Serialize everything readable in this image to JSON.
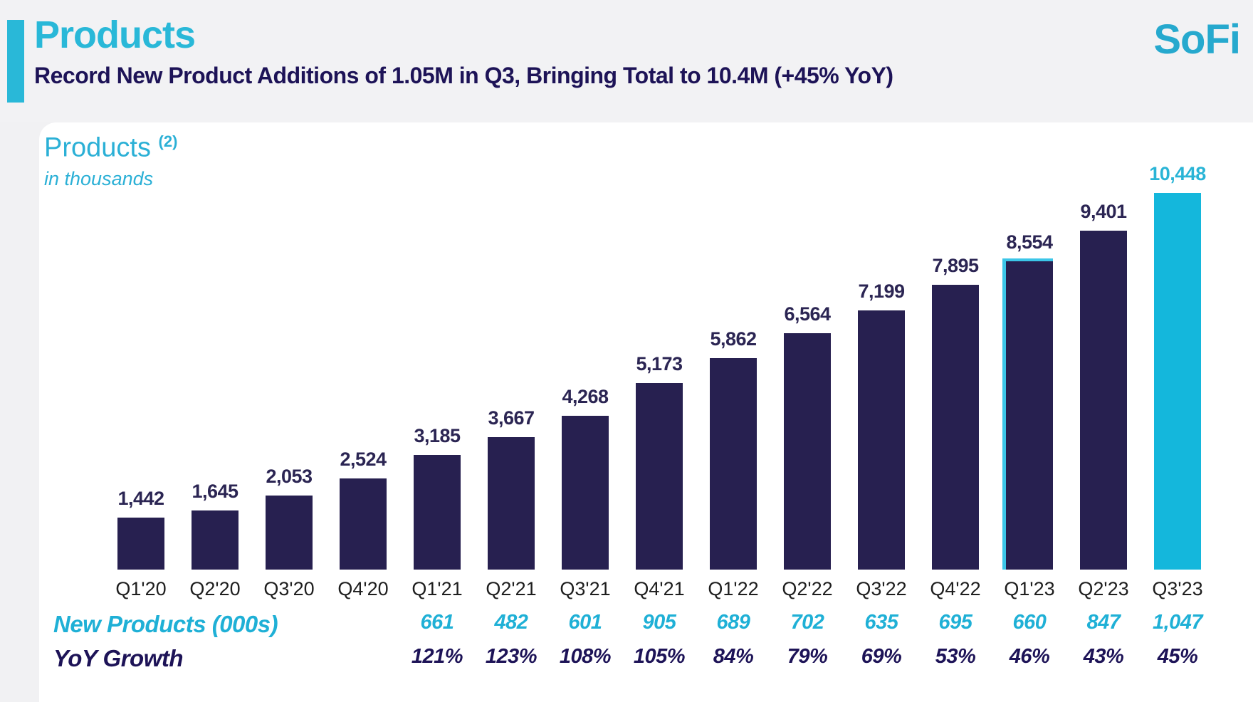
{
  "header": {
    "title": "Products",
    "subtitle": "Record New Product Additions of 1.05M in Q3, Bringing Total to 10.4M (+45% YoY)",
    "logo": "SoFi",
    "accent_color": "#29b8d8",
    "title_color": "#29b8d8",
    "subtitle_color": "#1d1357"
  },
  "chart_data": {
    "type": "bar",
    "title": "Products",
    "title_superscript": "(2)",
    "subtitle": "in thousands",
    "categories": [
      "Q1'20",
      "Q2'20",
      "Q3'20",
      "Q4'20",
      "Q1'21",
      "Q2'21",
      "Q3'21",
      "Q4'21",
      "Q1'22",
      "Q2'22",
      "Q3'22",
      "Q4'22",
      "Q1'23",
      "Q2'23",
      "Q3'23"
    ],
    "values": [
      1442,
      1645,
      2053,
      2524,
      3185,
      3667,
      4268,
      5173,
      5862,
      6564,
      7199,
      7895,
      8554,
      9401,
      10448
    ],
    "value_labels": [
      "1,442",
      "1,645",
      "2,053",
      "2,524",
      "3,185",
      "3,667",
      "4,268",
      "5,173",
      "5,862",
      "6,564",
      "7,199",
      "7,895",
      "8,554",
      "9,401",
      "10,448"
    ],
    "highlight_index": 14,
    "outlined_index": 12,
    "ylim": [
      0,
      10448
    ],
    "grid": false,
    "colors": {
      "bar": "#272050",
      "highlight_bar": "#14b7dc",
      "value_label": "#2b2553",
      "highlight_value_label": "#29b4d6",
      "axis_label": "#1e1e1e"
    },
    "table_rows": [
      {
        "label": "New Products (000s)",
        "color": "#1fb0d6",
        "start_category_index": 4,
        "values": [
          "661",
          "482",
          "601",
          "905",
          "689",
          "702",
          "635",
          "695",
          "660",
          "847",
          "1,047"
        ]
      },
      {
        "label": "YoY Growth",
        "color": "#1d1357",
        "start_category_index": 4,
        "values": [
          "121%",
          "123%",
          "108%",
          "105%",
          "84%",
          "79%",
          "69%",
          "53%",
          "46%",
          "43%",
          "45%"
        ]
      }
    ]
  }
}
